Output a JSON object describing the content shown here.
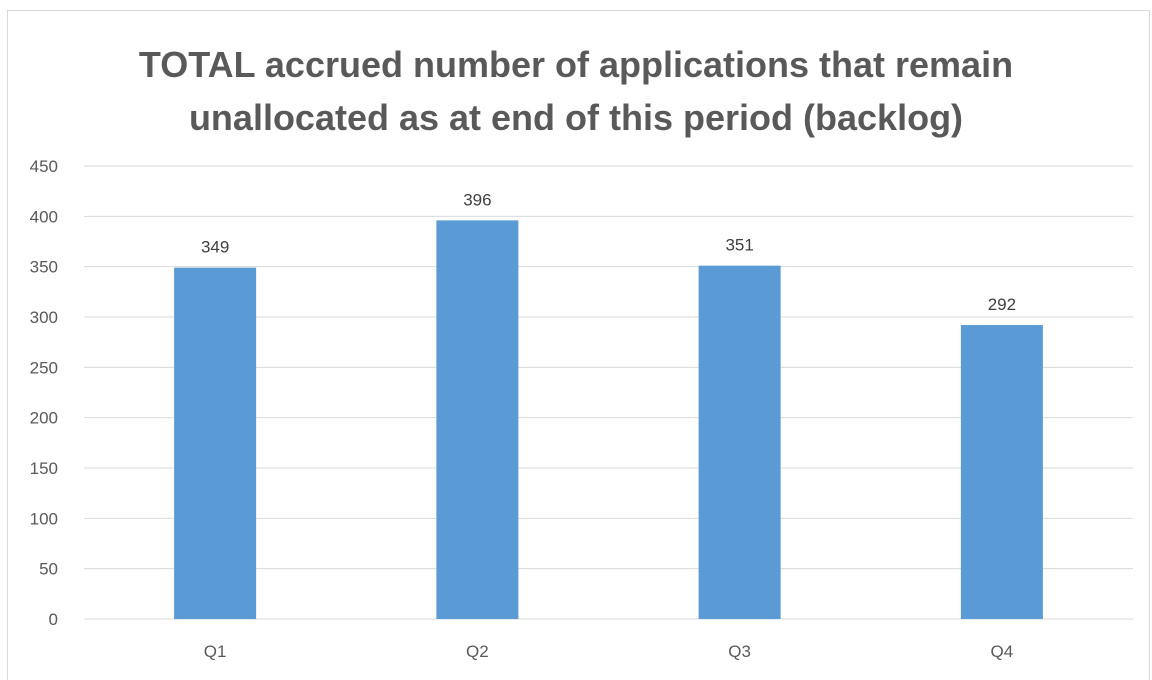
{
  "chart_data": {
    "type": "bar",
    "title_lines": [
      "TOTAL accrued number of applications that remain",
      "unallocated as at end of this period (backlog)"
    ],
    "categories": [
      "Q1",
      "Q2",
      "Q3",
      "Q4"
    ],
    "values": [
      349,
      396,
      351,
      292
    ],
    "data_labels": [
      "349",
      "396",
      "351",
      "292"
    ],
    "ylim": [
      0,
      450
    ],
    "y_ticks": [
      "0",
      "50",
      "100",
      "150",
      "200",
      "250",
      "300",
      "350",
      "400",
      "450"
    ],
    "xlabel": "",
    "ylabel": "",
    "grid": true,
    "legend": "none",
    "colors": {
      "bar": "#5b9bd5",
      "gridline": "#d9d9d9",
      "axis_text": "#595959",
      "label_text": "#404040"
    }
  }
}
